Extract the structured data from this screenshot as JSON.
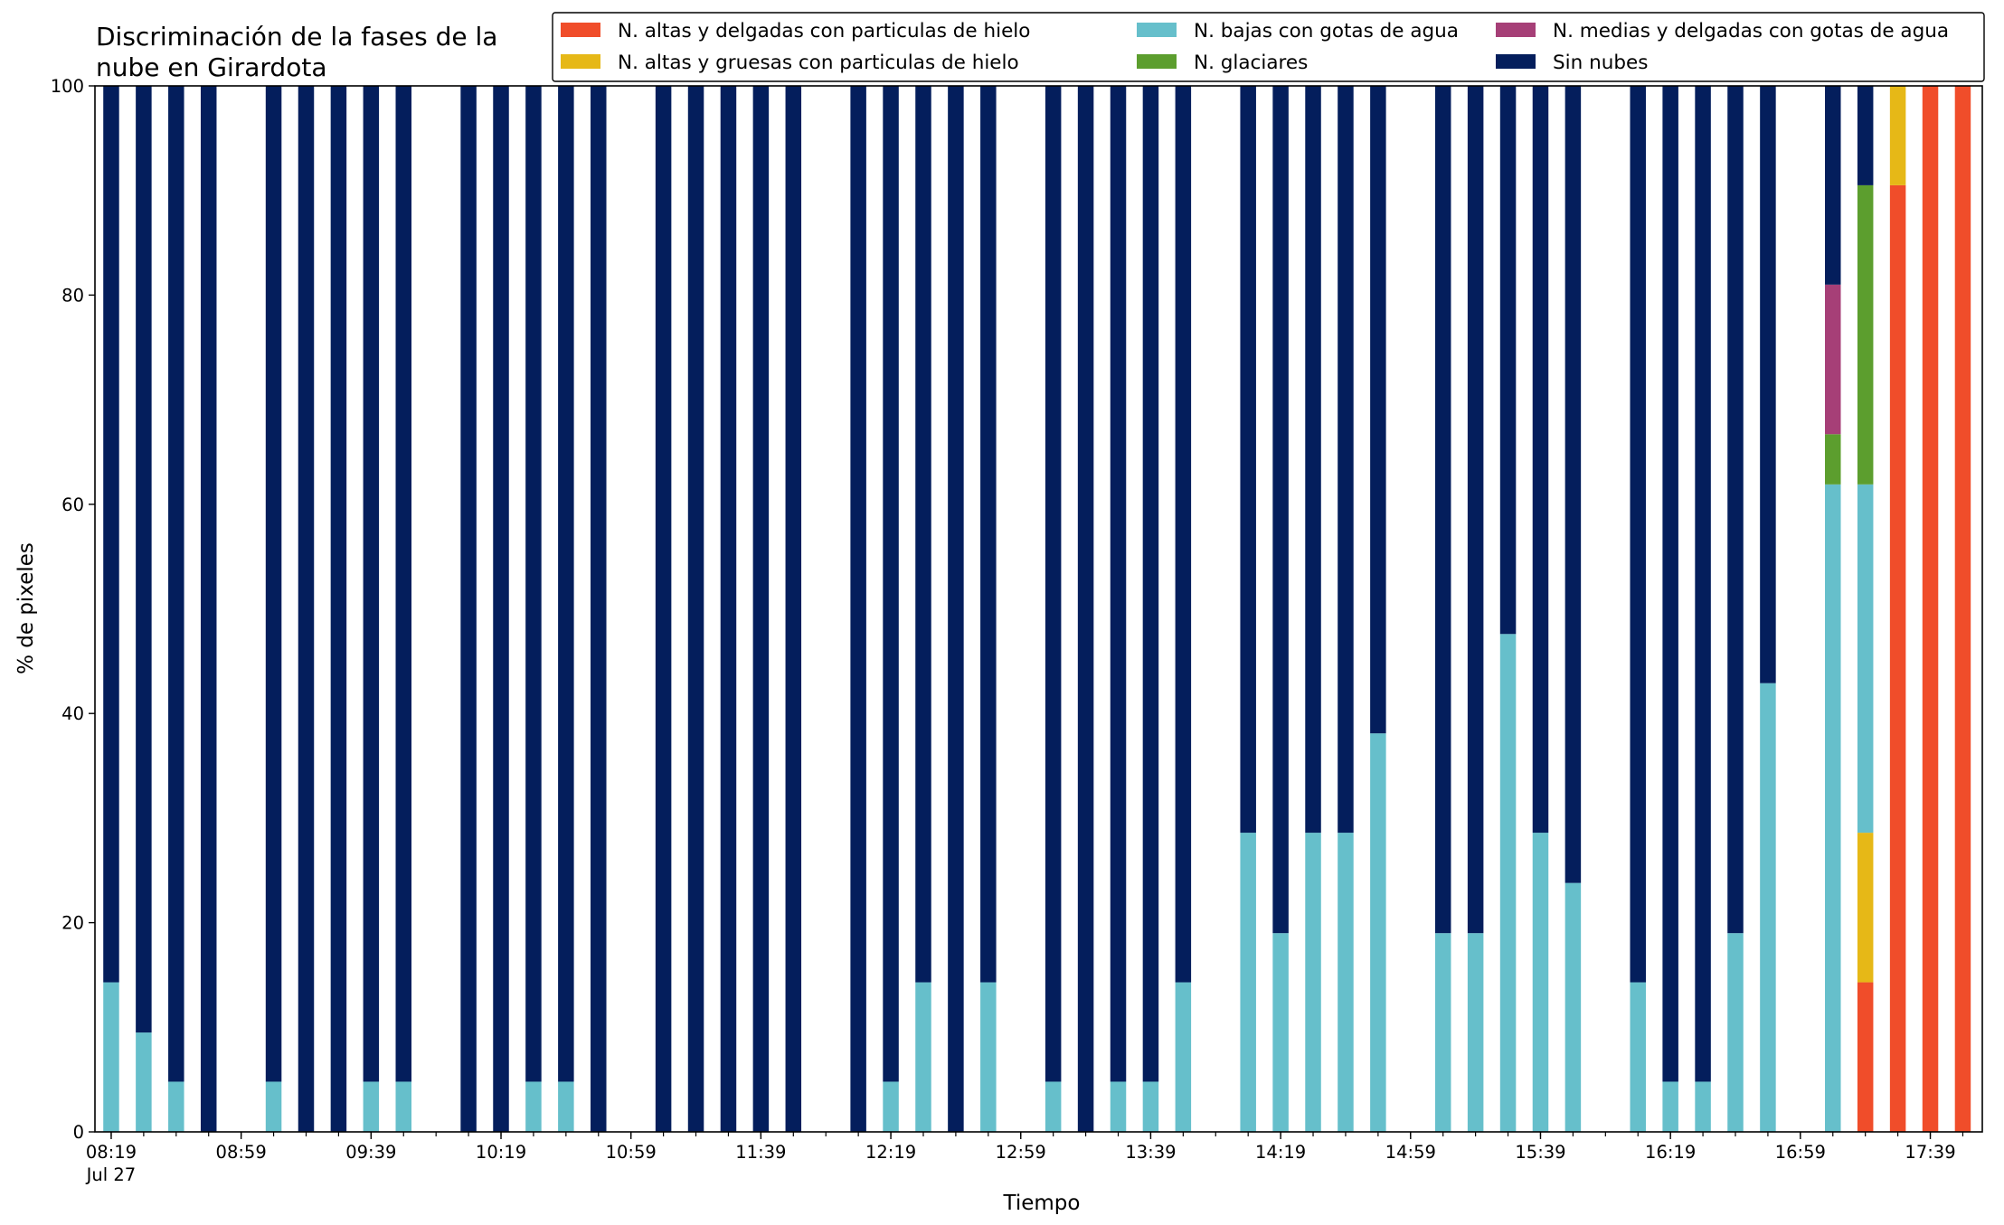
{
  "chart_data": {
    "type": "bar",
    "stacked": true,
    "title_lines": [
      "Discriminación de la fases de la",
      "nube en Girardota"
    ],
    "xlabel": "Tiempo",
    "ylabel": "% de pixeles",
    "ylim": [
      0,
      100
    ],
    "yticks": [
      0,
      20,
      40,
      60,
      80,
      100
    ],
    "xlim": [
      "08:14",
      "17:55"
    ],
    "x_tick_labels": [
      "08:19",
      "08:59",
      "09:39",
      "10:19",
      "10:59",
      "11:39",
      "12:19",
      "12:59",
      "13:39",
      "14:19",
      "14:59",
      "15:39",
      "16:19",
      "16:59",
      "17:39"
    ],
    "x_tick_sublabel": "Jul 27",
    "grid": false,
    "legend_position": "top-right",
    "x": [
      "08:19",
      "08:29",
      "08:39",
      "08:49",
      "09:09",
      "09:19",
      "09:29",
      "09:39",
      "09:49",
      "10:09",
      "10:19",
      "10:29",
      "10:39",
      "10:49",
      "11:09",
      "11:19",
      "11:29",
      "11:39",
      "11:49",
      "12:09",
      "12:19",
      "12:29",
      "12:39",
      "12:49",
      "13:09",
      "13:19",
      "13:29",
      "13:39",
      "13:49",
      "14:09",
      "14:19",
      "14:29",
      "14:39",
      "14:49",
      "15:09",
      "15:19",
      "15:29",
      "15:39",
      "15:49",
      "16:09",
      "16:19",
      "16:29",
      "16:39",
      "16:49",
      "17:09",
      "17:19",
      "17:29",
      "17:39",
      "17:49"
    ],
    "series": [
      {
        "name": "N. altas y delgadas con particulas de hielo",
        "color": "#f04d2a",
        "values": [
          0,
          0,
          0,
          0,
          0,
          0,
          0,
          0,
          0,
          0,
          0,
          0,
          0,
          0,
          0,
          0,
          0,
          0,
          0,
          0,
          0,
          0,
          0,
          0,
          0,
          0,
          0,
          0,
          0,
          0,
          0,
          0,
          0,
          0,
          0,
          0,
          0,
          0,
          0,
          0,
          0,
          0,
          0,
          0,
          0,
          14.3,
          90.5,
          100,
          100
        ]
      },
      {
        "name": "N. altas y gruesas con particulas de hielo",
        "color": "#e6b817",
        "values": [
          0,
          0,
          0,
          0,
          0,
          0,
          0,
          0,
          0,
          0,
          0,
          0,
          0,
          0,
          0,
          0,
          0,
          0,
          0,
          0,
          0,
          0,
          0,
          0,
          0,
          0,
          0,
          0,
          0,
          0,
          0,
          0,
          0,
          0,
          0,
          0,
          0,
          0,
          0,
          0,
          0,
          0,
          0,
          0,
          0,
          14.3,
          9.5,
          0,
          0
        ]
      },
      {
        "name": "N. bajas con gotas de agua",
        "color": "#66bfcb",
        "values": [
          14.3,
          9.5,
          4.8,
          0,
          4.8,
          0,
          0,
          4.8,
          4.8,
          0,
          0,
          4.8,
          4.8,
          0,
          0,
          0,
          0,
          0,
          0,
          0,
          4.8,
          14.3,
          0,
          14.3,
          4.8,
          0,
          4.8,
          4.8,
          14.3,
          28.6,
          19.0,
          28.6,
          28.6,
          38.1,
          19.0,
          19.0,
          47.6,
          28.6,
          23.8,
          14.3,
          4.8,
          4.8,
          19.0,
          42.9,
          61.9,
          33.3,
          0,
          0,
          0
        ]
      },
      {
        "name": "N. glaciares",
        "color": "#5c9e2e",
        "values": [
          0,
          0,
          0,
          0,
          0,
          0,
          0,
          0,
          0,
          0,
          0,
          0,
          0,
          0,
          0,
          0,
          0,
          0,
          0,
          0,
          0,
          0,
          0,
          0,
          0,
          0,
          0,
          0,
          0,
          0,
          0,
          0,
          0,
          0,
          0,
          0,
          0,
          0,
          0,
          0,
          0,
          0,
          0,
          0,
          4.8,
          28.6,
          0,
          0,
          0
        ]
      },
      {
        "name": "N. medias y delgadas con gotas de agua",
        "color": "#a63f77",
        "values": [
          0,
          0,
          0,
          0,
          0,
          0,
          0,
          0,
          0,
          0,
          0,
          0,
          0,
          0,
          0,
          0,
          0,
          0,
          0,
          0,
          0,
          0,
          0,
          0,
          0,
          0,
          0,
          0,
          0,
          0,
          0,
          0,
          0,
          0,
          0,
          0,
          0,
          0,
          0,
          0,
          0,
          0,
          0,
          0,
          14.3,
          0,
          0,
          0,
          0
        ]
      },
      {
        "name": "Sin nubes",
        "color": "#041e5c",
        "values": [
          85.7,
          90.5,
          95.2,
          100,
          95.2,
          100,
          100,
          95.2,
          95.2,
          100,
          100,
          95.2,
          95.2,
          100,
          100,
          100,
          100,
          100,
          100,
          100,
          95.2,
          85.7,
          100,
          85.7,
          95.2,
          100,
          95.2,
          95.2,
          85.7,
          71.4,
          81.0,
          71.4,
          71.4,
          61.9,
          81.0,
          81.0,
          52.4,
          71.4,
          76.2,
          85.7,
          95.2,
          95.2,
          81.0,
          57.1,
          19.0,
          9.5,
          0,
          0,
          0
        ]
      }
    ]
  }
}
